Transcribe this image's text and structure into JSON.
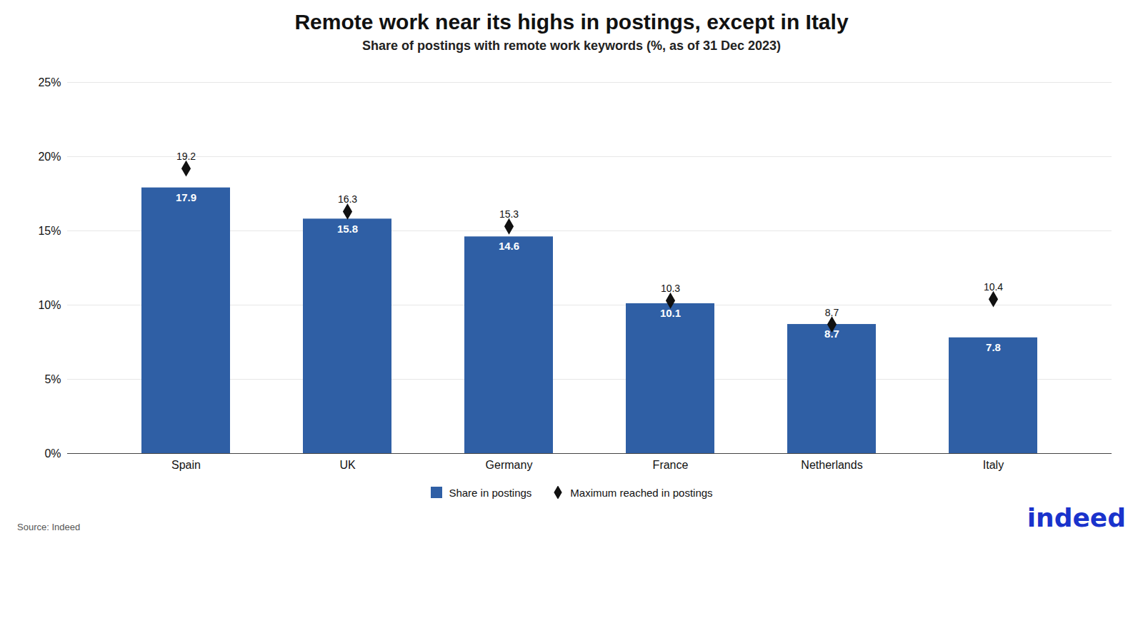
{
  "chart_data": {
    "type": "bar",
    "title": "Remote work near its highs in postings, except in Italy",
    "subtitle": "Share of postings with remote work keywords (%, as of 31 Dec 2023)",
    "categories": [
      "Spain",
      "UK",
      "Germany",
      "France",
      "Netherlands",
      "Italy"
    ],
    "series": [
      {
        "name": "Share in postings",
        "type": "bar",
        "color": "#2F5FA5",
        "values": [
          17.9,
          15.8,
          14.6,
          10.1,
          8.7,
          7.8
        ]
      },
      {
        "name": "Maximum reached in postings",
        "type": "scatter",
        "marker": "diamond",
        "color": "#111111",
        "values": [
          19.2,
          16.3,
          15.3,
          10.3,
          8.7,
          10.4
        ]
      }
    ],
    "ylim": [
      0,
      25
    ],
    "yticks": [
      {
        "value": 0,
        "label": "0%"
      },
      {
        "value": 5,
        "label": "5%"
      },
      {
        "value": 10,
        "label": "10%"
      },
      {
        "value": 15,
        "label": "15%"
      },
      {
        "value": 20,
        "label": "20%"
      },
      {
        "value": 25,
        "label": "25%"
      }
    ],
    "grid": true,
    "legend": "bottom",
    "data_labels": true,
    "source": "Source: Indeed",
    "annotations": [
      {
        "text": "indeed",
        "color": "#1a33cc"
      }
    ]
  }
}
